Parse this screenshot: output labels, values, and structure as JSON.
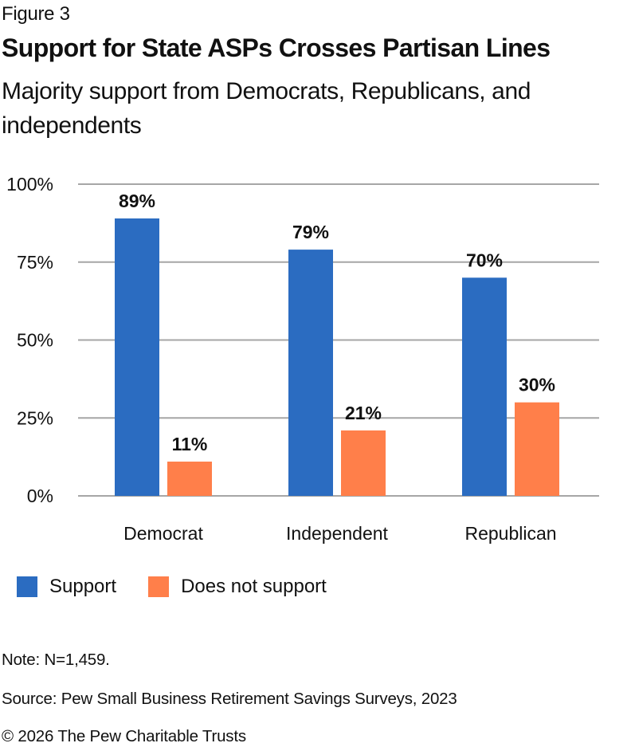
{
  "figure_label": "Figure 3",
  "title": "Support for State ASPs Crosses Partisan Lines",
  "subtitle": "Majority support from Democrats, Republicans, and independents",
  "chart_data": {
    "type": "bar",
    "title": "Support for State ASPs Crosses Partisan Lines",
    "subtitle": "Majority support from Democrats, Republicans, and independents",
    "categories": [
      "Democrat",
      "Independent",
      "Republican"
    ],
    "series": [
      {
        "name": "Support",
        "color": "#2B6CC1",
        "values": [
          89,
          79,
          70
        ],
        "labels": [
          "89%",
          "79%",
          "70%"
        ]
      },
      {
        "name": "Does not support",
        "color": "#FF7F4A",
        "values": [
          11,
          21,
          30
        ],
        "labels": [
          "11%",
          "21%",
          "30%"
        ]
      }
    ],
    "xlabel": "",
    "ylabel": "",
    "ylim": [
      0,
      100
    ],
    "yticks": [
      0,
      25,
      50,
      75,
      100
    ],
    "ytick_labels": [
      "0%",
      "25%",
      "50%",
      "75%",
      "100%"
    ],
    "grid": true,
    "gridline_color": "#A6A6A6",
    "legend_position": "bottom-left"
  },
  "legend": [
    {
      "label": "Support",
      "color": "#2B6CC1"
    },
    {
      "label": "Does not support",
      "color": "#FF7F4A"
    }
  ],
  "footer": {
    "note": "Note: N=1,459.",
    "source": "Source: Pew Small Business Retirement Savings Surveys, 2023",
    "copyright": "© 2026 The Pew Charitable Trusts"
  }
}
